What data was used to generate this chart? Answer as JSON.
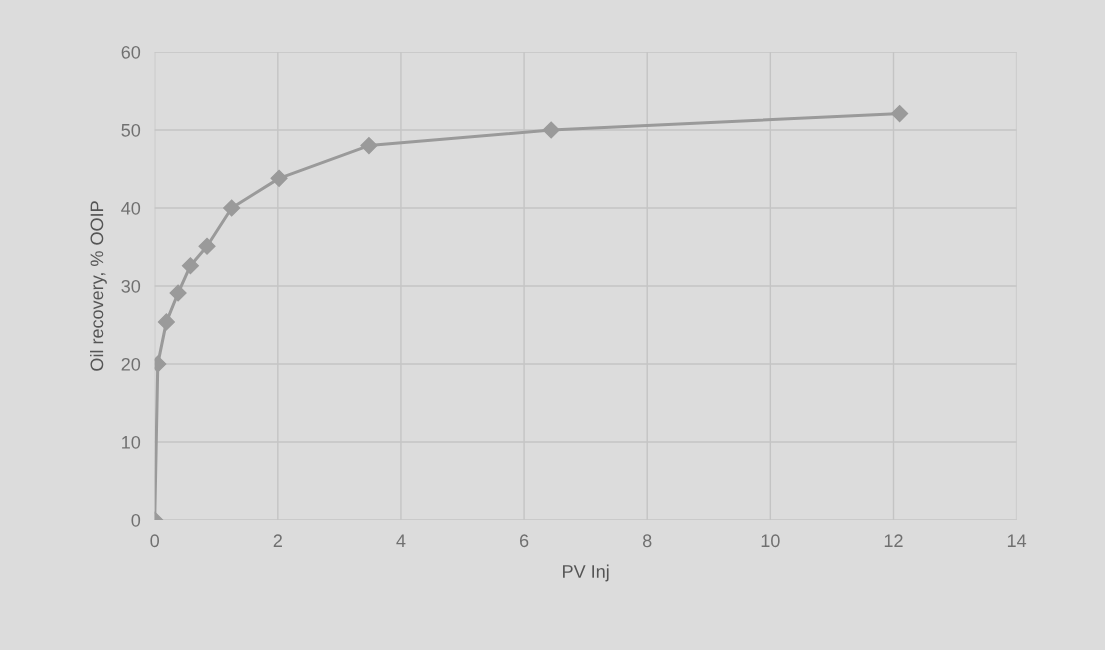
{
  "chart_data": {
    "type": "line",
    "xlabel": "PV Inj",
    "ylabel": "Oil recovery, % OOIP",
    "series": [
      {
        "color": "#9a9a9a",
        "x": [
          0,
          0.05,
          0.19,
          0.38,
          0.58,
          0.85,
          1.25,
          2.02,
          3.48,
          6.44,
          12.1
        ],
        "values": [
          0,
          20,
          25.4,
          29.1,
          32.6,
          35.1,
          40,
          43.8,
          48,
          50,
          52.1
        ]
      }
    ],
    "xlim": [
      0,
      14
    ],
    "xticks": [
      0,
      2,
      4,
      6,
      8,
      10,
      12,
      14
    ],
    "ylim": [
      0,
      60
    ],
    "yticks": [
      0,
      10,
      20,
      30,
      40,
      50,
      60
    ],
    "grid": true,
    "marker": "diamond",
    "line_style": "solid"
  }
}
